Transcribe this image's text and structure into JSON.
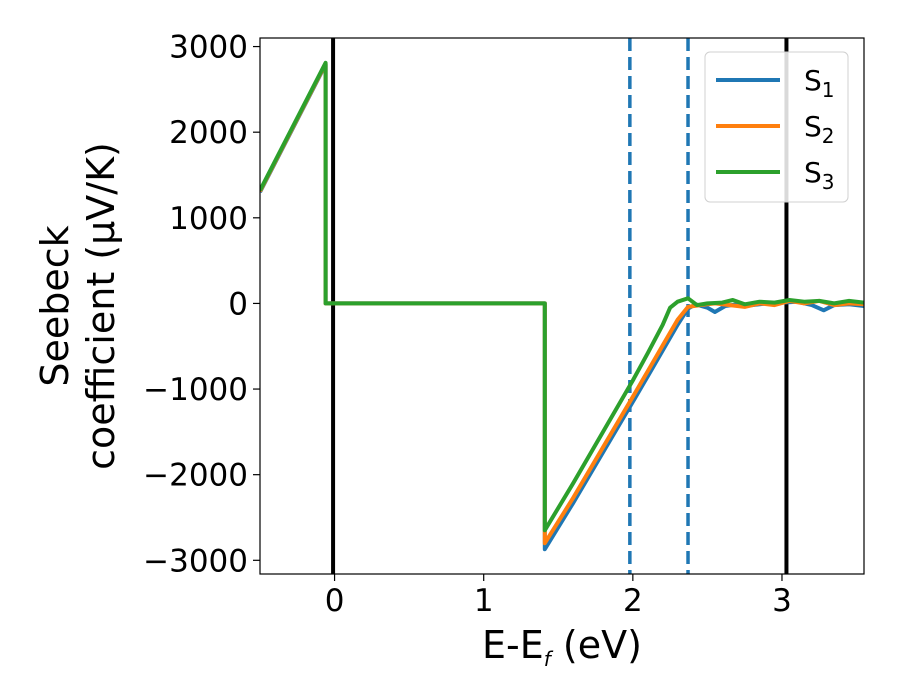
{
  "chart_data": {
    "type": "line",
    "xlabel": {
      "main": "E-E",
      "sub": "f",
      "rest": " (eV)"
    },
    "ylabel": {
      "line1": "Seebeck",
      "line2": "coefficient  (μV/K)"
    },
    "xlim": [
      -0.5,
      3.55
    ],
    "ylim": [
      -3160,
      3100
    ],
    "xticks": [
      0,
      1,
      2,
      3
    ],
    "yticks": [
      3000,
      2000,
      1000,
      0,
      -1000,
      -2000,
      -3000
    ],
    "xtick_labels": [
      "0",
      "1",
      "2",
      "3"
    ],
    "ytick_labels": [
      "3000",
      "2000",
      "1000",
      "0",
      "−1000",
      "−2000",
      "−3000"
    ],
    "grid": false,
    "legend_position": "top-right",
    "vertical_lines": [
      {
        "x": -0.01,
        "style": "solid",
        "color": "#000000"
      },
      {
        "x": 3.03,
        "style": "solid",
        "color": "#000000"
      },
      {
        "x": 1.98,
        "style": "dashed",
        "color": "#1f77b4"
      },
      {
        "x": 2.37,
        "style": "dashed",
        "color": "#1f77b4"
      }
    ],
    "series": [
      {
        "name": "S",
        "sub": "1",
        "color": "#1f77b4",
        "points": [
          [
            -0.5,
            1300
          ],
          [
            -0.06,
            2790
          ],
          [
            -0.06,
            0
          ],
          [
            1.41,
            0
          ],
          [
            1.41,
            -2870
          ],
          [
            1.6,
            -2330
          ],
          [
            1.8,
            -1740
          ],
          [
            2.0,
            -1150
          ],
          [
            2.1,
            -850
          ],
          [
            2.2,
            -550
          ],
          [
            2.3,
            -250
          ],
          [
            2.37,
            -60
          ],
          [
            2.42,
            -10
          ],
          [
            2.5,
            -50
          ],
          [
            2.55,
            -100
          ],
          [
            2.62,
            -30
          ],
          [
            2.7,
            -10
          ],
          [
            2.8,
            -20
          ],
          [
            2.9,
            0
          ],
          [
            3.0,
            10
          ],
          [
            3.1,
            20
          ],
          [
            3.2,
            -20
          ],
          [
            3.28,
            -80
          ],
          [
            3.35,
            -20
          ],
          [
            3.45,
            -10
          ],
          [
            3.55,
            -30
          ]
        ]
      },
      {
        "name": "S",
        "sub": "2",
        "color": "#ff7f0e",
        "points": [
          [
            -0.5,
            1310
          ],
          [
            -0.06,
            2800
          ],
          [
            -0.06,
            0
          ],
          [
            1.41,
            0
          ],
          [
            1.41,
            -2800
          ],
          [
            1.6,
            -2270
          ],
          [
            1.8,
            -1680
          ],
          [
            2.0,
            -1090
          ],
          [
            2.1,
            -790
          ],
          [
            2.2,
            -490
          ],
          [
            2.3,
            -190
          ],
          [
            2.37,
            -40
          ],
          [
            2.45,
            -20
          ],
          [
            2.55,
            0
          ],
          [
            2.65,
            -20
          ],
          [
            2.75,
            -40
          ],
          [
            2.85,
            0
          ],
          [
            2.95,
            -20
          ],
          [
            3.05,
            30
          ],
          [
            3.15,
            0
          ],
          [
            3.25,
            30
          ],
          [
            3.35,
            -20
          ],
          [
            3.45,
            0
          ],
          [
            3.55,
            -10
          ]
        ]
      },
      {
        "name": "S",
        "sub": "3",
        "color": "#2ca02c",
        "points": [
          [
            -0.5,
            1320
          ],
          [
            -0.06,
            2810
          ],
          [
            -0.06,
            0
          ],
          [
            1.41,
            0
          ],
          [
            1.41,
            -2650
          ],
          [
            1.6,
            -2100
          ],
          [
            1.8,
            -1500
          ],
          [
            2.0,
            -900
          ],
          [
            2.1,
            -580
          ],
          [
            2.2,
            -250
          ],
          [
            2.25,
            -50
          ],
          [
            2.3,
            20
          ],
          [
            2.37,
            60
          ],
          [
            2.43,
            -20
          ],
          [
            2.5,
            0
          ],
          [
            2.6,
            10
          ],
          [
            2.67,
            40
          ],
          [
            2.75,
            -10
          ],
          [
            2.85,
            20
          ],
          [
            2.95,
            10
          ],
          [
            3.05,
            40
          ],
          [
            3.15,
            20
          ],
          [
            3.25,
            30
          ],
          [
            3.35,
            0
          ],
          [
            3.45,
            30
          ],
          [
            3.55,
            10
          ]
        ]
      }
    ]
  }
}
